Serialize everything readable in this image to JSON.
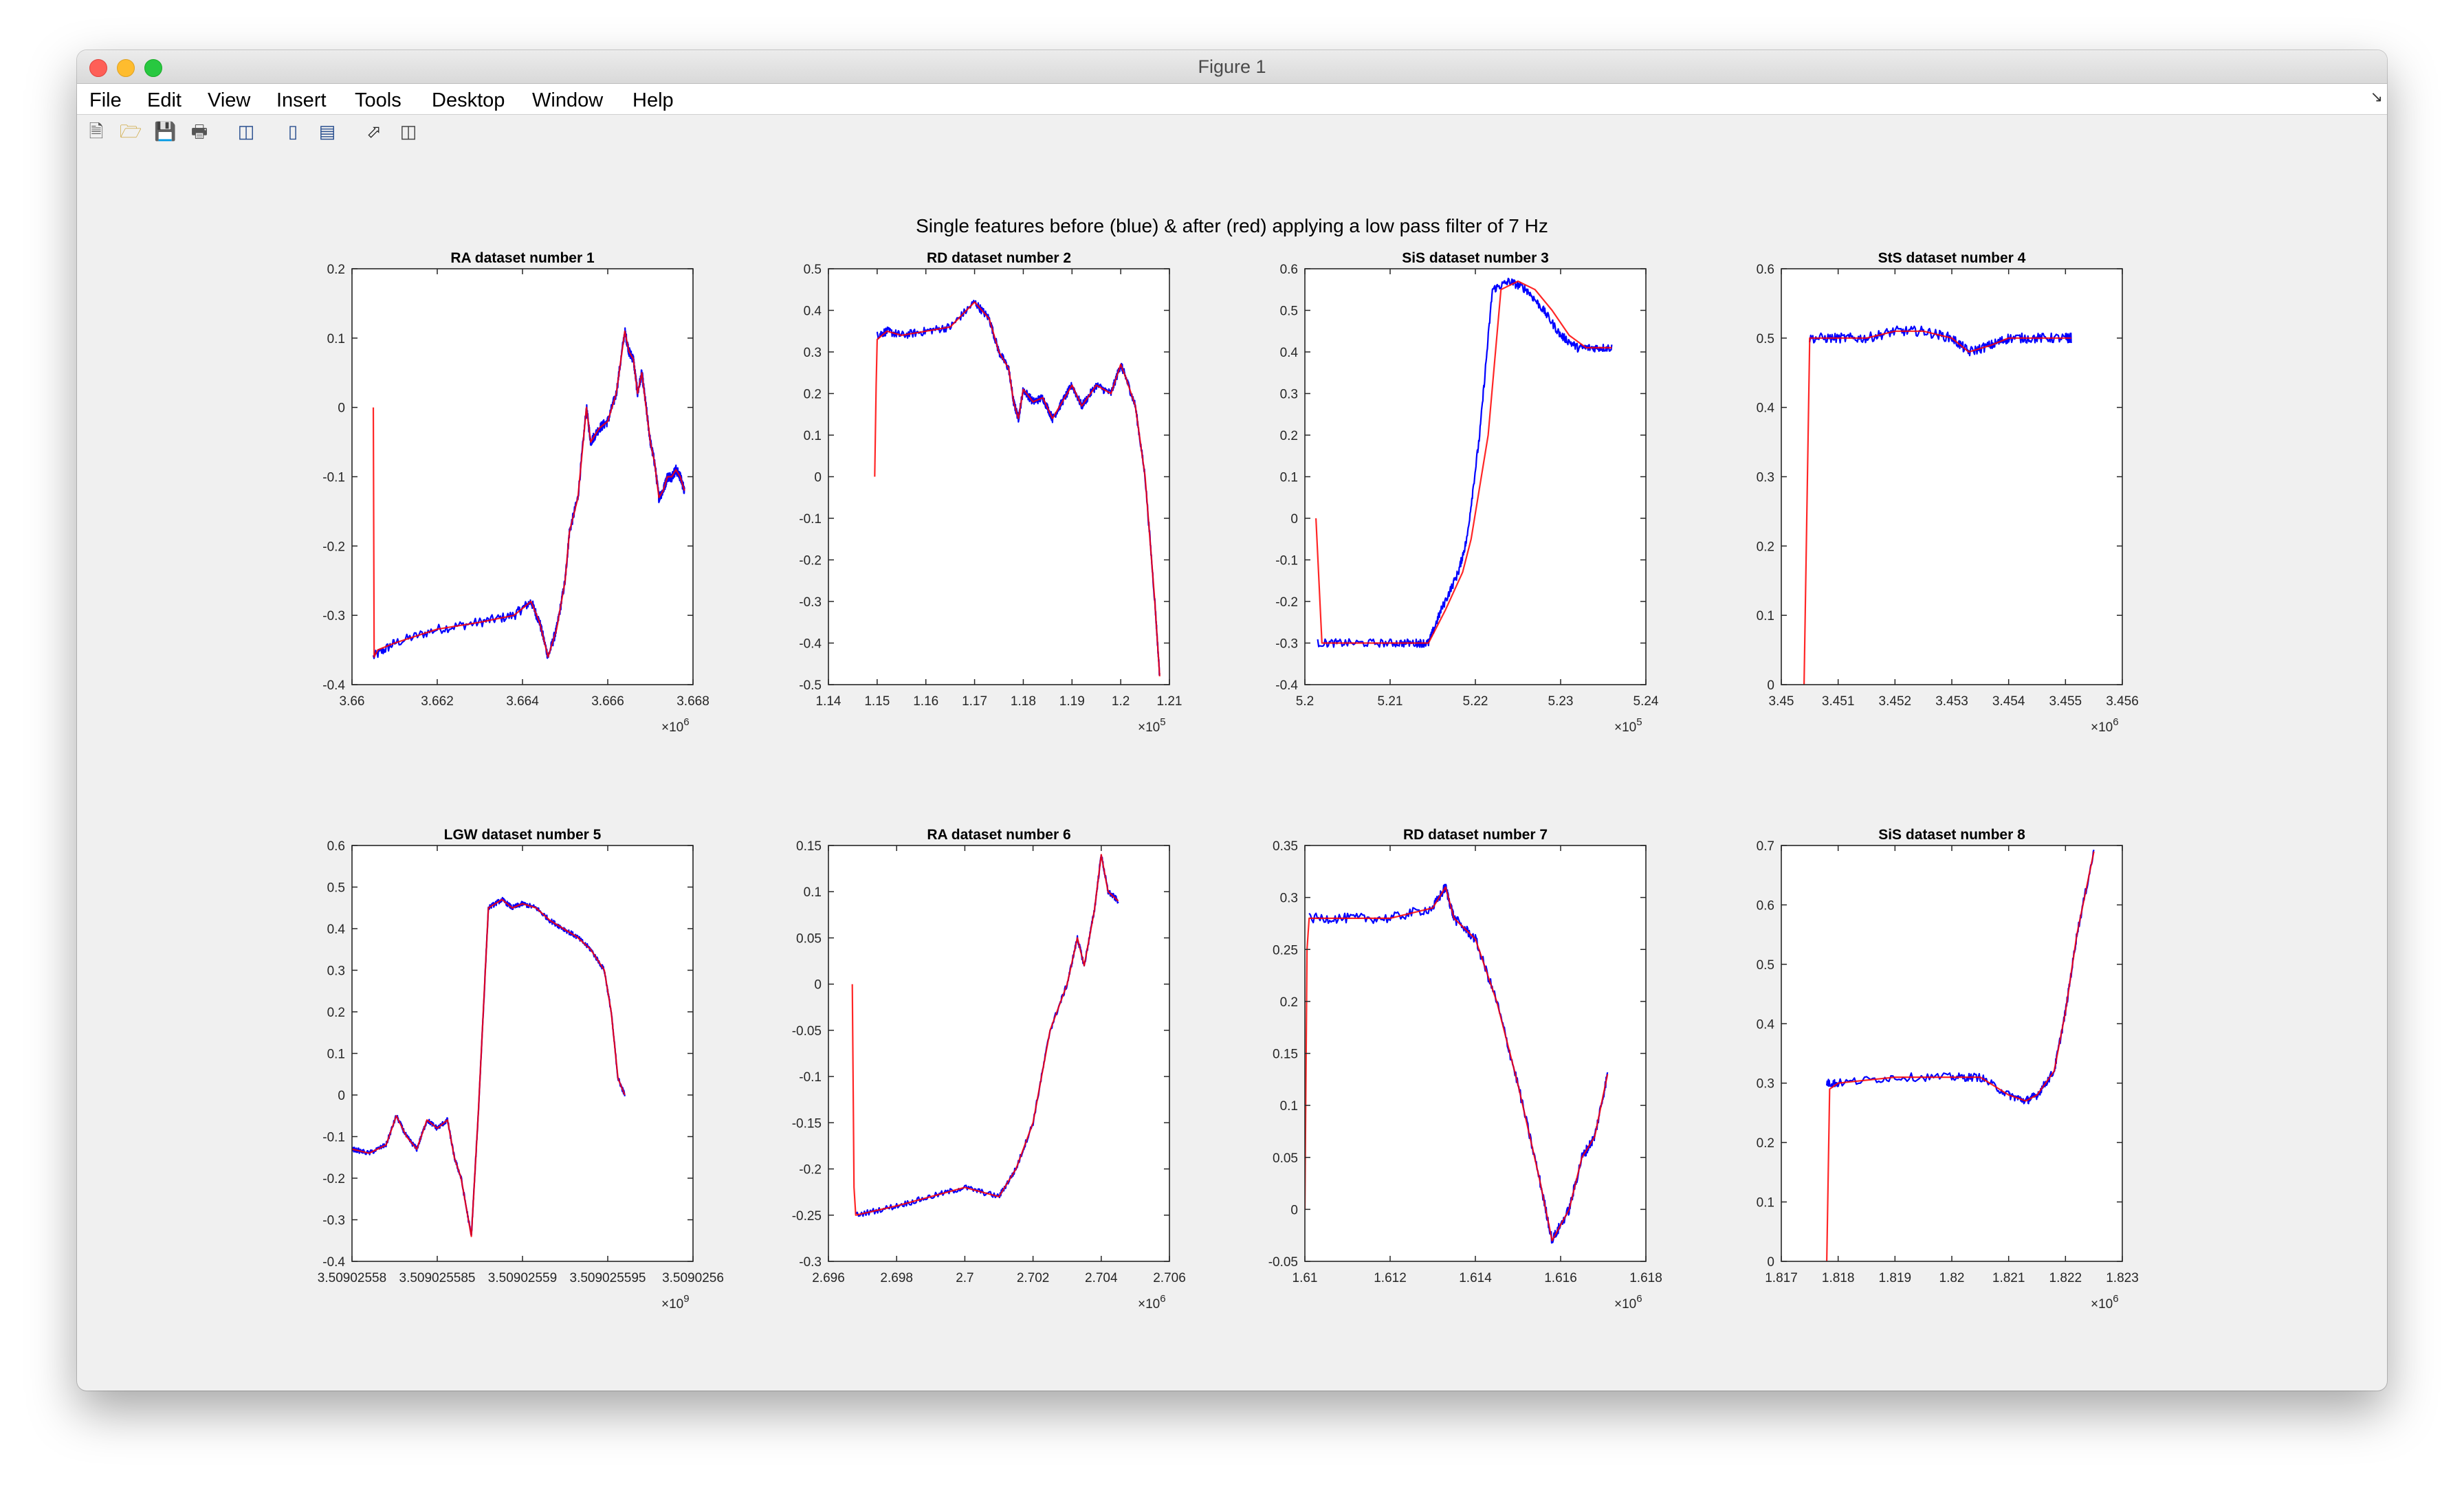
{
  "window": {
    "title": "Figure 1"
  },
  "menu": [
    "File",
    "Edit",
    "View",
    "Insert",
    "Tools",
    "Desktop",
    "Window",
    "Help"
  ],
  "toolbar_icons": [
    "new-figure-icon",
    "open-file-icon",
    "save-icon",
    "print-icon",
    "link-plot-icon",
    "insert-colorbar-icon",
    "insert-legend-icon",
    "edit-plot-arrow-icon",
    "property-inspector-icon"
  ],
  "figure": {
    "suptitle": "Single features before (blue) & after (red) applying a low pass filter of 7 Hz"
  },
  "colors": {
    "before": "#0000ff",
    "after": "#ff0000"
  },
  "chart_data": [
    {
      "type": "line",
      "title": "RA dataset number 1",
      "xlim": [
        3.66,
        3.668
      ],
      "ylim": [
        -0.4,
        0.2
      ],
      "xticks": [
        "3.66",
        "3.662",
        "3.664",
        "3.666",
        "3.668"
      ],
      "yticks": [
        "-0.4",
        "-0.3",
        "-0.2",
        "-0.1",
        "0",
        "0.1",
        "0.2"
      ],
      "exponent": {
        "base": "×10",
        "power": "6"
      },
      "noise": 0.012,
      "series": [
        {
          "label": "before",
          "color": "#0000ff",
          "x": [
            3.6605,
            3.661,
            3.662,
            3.663,
            3.6638,
            3.6642,
            3.6644,
            3.6646,
            3.6648,
            3.665,
            3.6651,
            3.6653,
            3.6655,
            3.6656,
            3.6658,
            3.666,
            3.6662,
            3.6664,
            3.6665,
            3.6666,
            3.6667,
            3.6668,
            3.6669,
            3.667,
            3.6671,
            3.6672,
            3.6673,
            3.6674,
            3.6675,
            3.6676,
            3.6677,
            3.6678
          ],
          "y": [
            -0.36,
            -0.34,
            -0.32,
            -0.31,
            -0.3,
            -0.28,
            -0.31,
            -0.36,
            -0.32,
            -0.25,
            -0.18,
            -0.13,
            0.0,
            -0.05,
            -0.03,
            -0.02,
            0.02,
            0.11,
            0.08,
            0.07,
            0.02,
            0.05,
            0.0,
            -0.05,
            -0.08,
            -0.13,
            -0.12,
            -0.1,
            -0.1,
            -0.09,
            -0.1,
            -0.12
          ]
        },
        {
          "label": "after",
          "color": "#ff0000",
          "x": [
            3.6605,
            3.66052,
            3.6606,
            3.661,
            3.662,
            3.663,
            3.6638,
            3.6642,
            3.6644,
            3.6646,
            3.6648,
            3.665,
            3.6651,
            3.6653,
            3.6655,
            3.6656,
            3.6658,
            3.666,
            3.6662,
            3.6664,
            3.6665,
            3.6666,
            3.6667,
            3.6668,
            3.6669,
            3.667,
            3.6671,
            3.6672,
            3.6673,
            3.6674,
            3.6675,
            3.6676,
            3.6677,
            3.6678
          ],
          "y": [
            0.0,
            -0.36,
            -0.35,
            -0.34,
            -0.32,
            -0.31,
            -0.3,
            -0.28,
            -0.31,
            -0.36,
            -0.32,
            -0.25,
            -0.18,
            -0.13,
            0.0,
            -0.05,
            -0.03,
            -0.02,
            0.02,
            0.11,
            0.08,
            0.07,
            0.02,
            0.05,
            0.0,
            -0.05,
            -0.08,
            -0.13,
            -0.12,
            -0.1,
            -0.1,
            -0.09,
            -0.1,
            -0.12
          ]
        }
      ]
    },
    {
      "type": "line",
      "title": "RD dataset number 2",
      "xlim": [
        1.14,
        1.21
      ],
      "ylim": [
        -0.5,
        0.5
      ],
      "xticks": [
        "1.14",
        "1.15",
        "1.16",
        "1.17",
        "1.18",
        "1.19",
        "1.2",
        "1.21"
      ],
      "yticks": [
        "-0.5",
        "-0.4",
        "-0.3",
        "-0.2",
        "-0.1",
        "0",
        "0.1",
        "0.2",
        "0.3",
        "0.4",
        "0.5"
      ],
      "exponent": {
        "base": "×10",
        "power": "5"
      },
      "noise": 0.01,
      "series": [
        {
          "label": "before",
          "color": "#0000ff",
          "x": [
            1.15,
            1.152,
            1.155,
            1.16,
            1.165,
            1.17,
            1.173,
            1.175,
            1.177,
            1.178,
            1.179,
            1.18,
            1.182,
            1.184,
            1.186,
            1.188,
            1.19,
            1.192,
            1.195,
            1.198,
            1.2,
            1.201,
            1.203,
            1.205,
            1.207,
            1.208
          ],
          "y": [
            0.34,
            0.35,
            0.34,
            0.35,
            0.36,
            0.42,
            0.38,
            0.3,
            0.26,
            0.18,
            0.14,
            0.21,
            0.18,
            0.19,
            0.14,
            0.18,
            0.22,
            0.17,
            0.22,
            0.2,
            0.27,
            0.24,
            0.17,
            0.0,
            -0.3,
            -0.48
          ]
        },
        {
          "label": "after",
          "color": "#ff0000",
          "x": [
            1.1495,
            1.1498,
            1.15,
            1.152,
            1.155,
            1.16,
            1.165,
            1.17,
            1.173,
            1.175,
            1.177,
            1.178,
            1.179,
            1.18,
            1.182,
            1.184,
            1.186,
            1.188,
            1.19,
            1.192,
            1.195,
            1.198,
            1.2,
            1.201,
            1.203,
            1.205,
            1.207,
            1.208
          ],
          "y": [
            0.0,
            0.22,
            0.33,
            0.35,
            0.34,
            0.35,
            0.36,
            0.42,
            0.38,
            0.3,
            0.26,
            0.18,
            0.14,
            0.21,
            0.18,
            0.19,
            0.14,
            0.18,
            0.22,
            0.17,
            0.22,
            0.2,
            0.27,
            0.24,
            0.17,
            0.0,
            -0.3,
            -0.48
          ]
        }
      ]
    },
    {
      "type": "line",
      "title": "SiS dataset number 3",
      "xlim": [
        5.2,
        5.24
      ],
      "ylim": [
        -0.4,
        0.6
      ],
      "xticks": [
        "5.2",
        "5.21",
        "5.22",
        "5.23",
        "5.24"
      ],
      "yticks": [
        "-0.4",
        "-0.3",
        "-0.2",
        "-0.1",
        "0",
        "0.1",
        "0.2",
        "0.3",
        "0.4",
        "0.5",
        "0.6"
      ],
      "exponent": {
        "base": "×10",
        "power": "5"
      },
      "noise": 0.01,
      "series": [
        {
          "label": "before",
          "color": "#0000ff",
          "x": [
            5.2015,
            5.205,
            5.21,
            5.213,
            5.2145,
            5.216,
            5.218,
            5.219,
            5.2205,
            5.222,
            5.224,
            5.226,
            5.228,
            5.23,
            5.232,
            5.234,
            5.236
          ],
          "y": [
            -0.3,
            -0.3,
            -0.3,
            -0.3,
            -0.3,
            -0.22,
            -0.13,
            -0.05,
            0.2,
            0.55,
            0.57,
            0.55,
            0.5,
            0.44,
            0.41,
            0.41,
            0.41
          ]
        },
        {
          "label": "after",
          "color": "#ff0000",
          "x": [
            5.2013,
            5.202,
            5.205,
            5.21,
            5.213,
            5.2145,
            5.2165,
            5.2185,
            5.2195,
            5.2215,
            5.223,
            5.225,
            5.227,
            5.229,
            5.231,
            5.233,
            5.235,
            5.236
          ],
          "y": [
            0.0,
            -0.3,
            -0.3,
            -0.3,
            -0.3,
            -0.3,
            -0.22,
            -0.13,
            -0.05,
            0.2,
            0.55,
            0.57,
            0.55,
            0.5,
            0.44,
            0.41,
            0.41,
            0.41
          ]
        }
      ]
    },
    {
      "type": "line",
      "title": "StS dataset number 4",
      "xlim": [
        3.45,
        3.456
      ],
      "ylim": [
        0,
        0.6
      ],
      "xticks": [
        "3.45",
        "3.451",
        "3.452",
        "3.453",
        "3.454",
        "3.455",
        "3.456"
      ],
      "yticks": [
        "0",
        "0.1",
        "0.2",
        "0.3",
        "0.4",
        "0.5",
        "0.6"
      ],
      "exponent": {
        "base": "×10",
        "power": "6"
      },
      "noise": 0.012,
      "series": [
        {
          "label": "before",
          "color": "#0000ff",
          "x": [
            3.4505,
            3.451,
            3.4515,
            3.452,
            3.4525,
            3.453,
            3.4533,
            3.4537,
            3.454,
            3.4545,
            3.455,
            3.4551
          ],
          "y": [
            0.5,
            0.5,
            0.5,
            0.51,
            0.51,
            0.5,
            0.48,
            0.49,
            0.5,
            0.5,
            0.5,
            0.5
          ]
        },
        {
          "label": "after",
          "color": "#ff0000",
          "x": [
            3.4504,
            3.4505,
            3.451,
            3.4515,
            3.452,
            3.4525,
            3.453,
            3.4533,
            3.4537,
            3.454,
            3.4545,
            3.455,
            3.4551
          ],
          "y": [
            0.0,
            0.5,
            0.5,
            0.5,
            0.51,
            0.51,
            0.5,
            0.48,
            0.49,
            0.5,
            0.5,
            0.5,
            0.5
          ]
        }
      ]
    },
    {
      "type": "line",
      "title": "LGW dataset number 5",
      "xlim": [
        0.0,
        1.0
      ],
      "ylim": [
        -0.4,
        0.6
      ],
      "xticks": [
        "3.50902558",
        "3.509025585",
        "3.50902559",
        "3.509025595",
        "3.5090256"
      ],
      "yticks": [
        "-0.4",
        "-0.3",
        "-0.2",
        "-0.1",
        "0",
        "0.1",
        "0.2",
        "0.3",
        "0.4",
        "0.5",
        "0.6"
      ],
      "exponent": {
        "base": "×10",
        "power": "9"
      },
      "noise": 0.006,
      "series": [
        {
          "label": "before",
          "color": "#0000ff",
          "x": [
            0.0,
            0.05,
            0.1,
            0.13,
            0.16,
            0.19,
            0.22,
            0.25,
            0.28,
            0.3,
            0.32,
            0.35,
            0.37,
            0.4,
            0.44,
            0.47,
            0.5,
            0.54,
            0.58,
            0.62,
            0.66,
            0.7,
            0.74,
            0.76,
            0.78,
            0.8
          ],
          "y": [
            -0.13,
            -0.14,
            -0.12,
            -0.05,
            -0.1,
            -0.13,
            -0.06,
            -0.08,
            -0.06,
            -0.15,
            -0.2,
            -0.34,
            -0.05,
            0.45,
            0.47,
            0.45,
            0.46,
            0.45,
            0.42,
            0.4,
            0.38,
            0.35,
            0.3,
            0.2,
            0.04,
            0.0
          ]
        },
        {
          "label": "after",
          "color": "#ff0000",
          "x": [
            0.0,
            0.05,
            0.1,
            0.13,
            0.16,
            0.19,
            0.22,
            0.25,
            0.28,
            0.3,
            0.32,
            0.35,
            0.37,
            0.4,
            0.44,
            0.47,
            0.5,
            0.54,
            0.58,
            0.62,
            0.66,
            0.7,
            0.74,
            0.76,
            0.78,
            0.8
          ],
          "y": [
            -0.13,
            -0.14,
            -0.12,
            -0.05,
            -0.1,
            -0.13,
            -0.06,
            -0.08,
            -0.06,
            -0.15,
            -0.2,
            -0.34,
            -0.05,
            0.45,
            0.47,
            0.45,
            0.46,
            0.45,
            0.42,
            0.4,
            0.38,
            0.35,
            0.3,
            0.2,
            0.04,
            0.0
          ]
        }
      ]
    },
    {
      "type": "line",
      "title": "RA dataset number 6",
      "xlim": [
        2.696,
        2.706
      ],
      "ylim": [
        -0.3,
        0.15
      ],
      "xticks": [
        "2.696",
        "2.698",
        "2.7",
        "2.702",
        "2.704",
        "2.706"
      ],
      "yticks": [
        "-0.3",
        "-0.25",
        "-0.2",
        "-0.15",
        "-0.1",
        "-0.05",
        "0",
        "0.05",
        "0.1",
        "0.15"
      ],
      "exponent": {
        "base": "×10",
        "power": "6"
      },
      "noise": 0.007,
      "series": [
        {
          "label": "before",
          "color": "#0000ff",
          "x": [
            2.6968,
            2.698,
            2.699,
            2.7,
            2.701,
            2.7015,
            2.702,
            2.7025,
            2.703,
            2.7033,
            2.7035,
            2.7038,
            2.704,
            2.7042,
            2.7045
          ],
          "y": [
            -0.25,
            -0.24,
            -0.23,
            -0.22,
            -0.23,
            -0.2,
            -0.15,
            -0.05,
            0.0,
            0.05,
            0.02,
            0.08,
            0.14,
            0.1,
            0.09
          ]
        },
        {
          "label": "after",
          "color": "#ff0000",
          "x": [
            2.6967,
            2.69675,
            2.6968,
            2.698,
            2.699,
            2.7,
            2.701,
            2.7015,
            2.702,
            2.7025,
            2.703,
            2.7033,
            2.7035,
            2.7038,
            2.704,
            2.7042,
            2.7045
          ],
          "y": [
            0.0,
            -0.22,
            -0.25,
            -0.24,
            -0.23,
            -0.22,
            -0.23,
            -0.2,
            -0.15,
            -0.05,
            0.0,
            0.05,
            0.02,
            0.08,
            0.14,
            0.1,
            0.09
          ]
        }
      ]
    },
    {
      "type": "line",
      "title": "RD dataset number 7",
      "xlim": [
        1.61,
        1.618
      ],
      "ylim": [
        -0.05,
        0.35
      ],
      "xticks": [
        "1.61",
        "1.612",
        "1.614",
        "1.616",
        "1.618"
      ],
      "yticks": [
        "-0.05",
        "0",
        "0.05",
        "0.1",
        "0.15",
        "0.2",
        "0.25",
        "0.3",
        "0.35"
      ],
      "exponent": {
        "base": "×10",
        "power": "6"
      },
      "noise": 0.012,
      "series": [
        {
          "label": "before",
          "color": "#0000ff",
          "x": [
            1.6101,
            1.611,
            1.612,
            1.613,
            1.6133,
            1.6135,
            1.614,
            1.6145,
            1.615,
            1.6155,
            1.6158,
            1.6162,
            1.6165,
            1.6168,
            1.6171
          ],
          "y": [
            0.28,
            0.28,
            0.28,
            0.29,
            0.31,
            0.28,
            0.26,
            0.2,
            0.12,
            0.03,
            -0.03,
            0.0,
            0.05,
            0.07,
            0.13
          ]
        },
        {
          "label": "after",
          "color": "#ff0000",
          "x": [
            1.61,
            1.61005,
            1.6101,
            1.611,
            1.612,
            1.613,
            1.6133,
            1.6135,
            1.614,
            1.6145,
            1.615,
            1.6155,
            1.6158,
            1.6162,
            1.6165,
            1.6168,
            1.6171
          ],
          "y": [
            0.0,
            0.25,
            0.28,
            0.28,
            0.28,
            0.29,
            0.31,
            0.28,
            0.26,
            0.2,
            0.12,
            0.03,
            -0.03,
            0.0,
            0.05,
            0.07,
            0.13
          ]
        }
      ]
    },
    {
      "type": "line",
      "title": "SiS dataset number 8",
      "xlim": [
        1.817,
        1.823
      ],
      "ylim": [
        0,
        0.7
      ],
      "xticks": [
        "1.817",
        "1.818",
        "1.819",
        "1.82",
        "1.821",
        "1.822",
        "1.823"
      ],
      "yticks": [
        "0",
        "0.1",
        "0.2",
        "0.3",
        "0.4",
        "0.5",
        "0.6",
        "0.7"
      ],
      "exponent": {
        "base": "×10",
        "power": "6"
      },
      "noise": 0.01,
      "series": [
        {
          "label": "before",
          "color": "#0000ff",
          "x": [
            1.8178,
            1.818,
            1.819,
            1.82,
            1.8205,
            1.821,
            1.8213,
            1.8215,
            1.8218,
            1.822,
            1.8222,
            1.8225
          ],
          "y": [
            0.3,
            0.3,
            0.31,
            0.31,
            0.31,
            0.28,
            0.27,
            0.28,
            0.32,
            0.42,
            0.55,
            0.69
          ]
        },
        {
          "label": "after",
          "color": "#ff0000",
          "x": [
            1.8178,
            1.81785,
            1.818,
            1.819,
            1.82,
            1.8205,
            1.821,
            1.8213,
            1.8215,
            1.8218,
            1.822,
            1.8222,
            1.8225
          ],
          "y": [
            0.0,
            0.29,
            0.3,
            0.31,
            0.31,
            0.31,
            0.28,
            0.27,
            0.28,
            0.32,
            0.42,
            0.55,
            0.69
          ]
        }
      ]
    }
  ]
}
